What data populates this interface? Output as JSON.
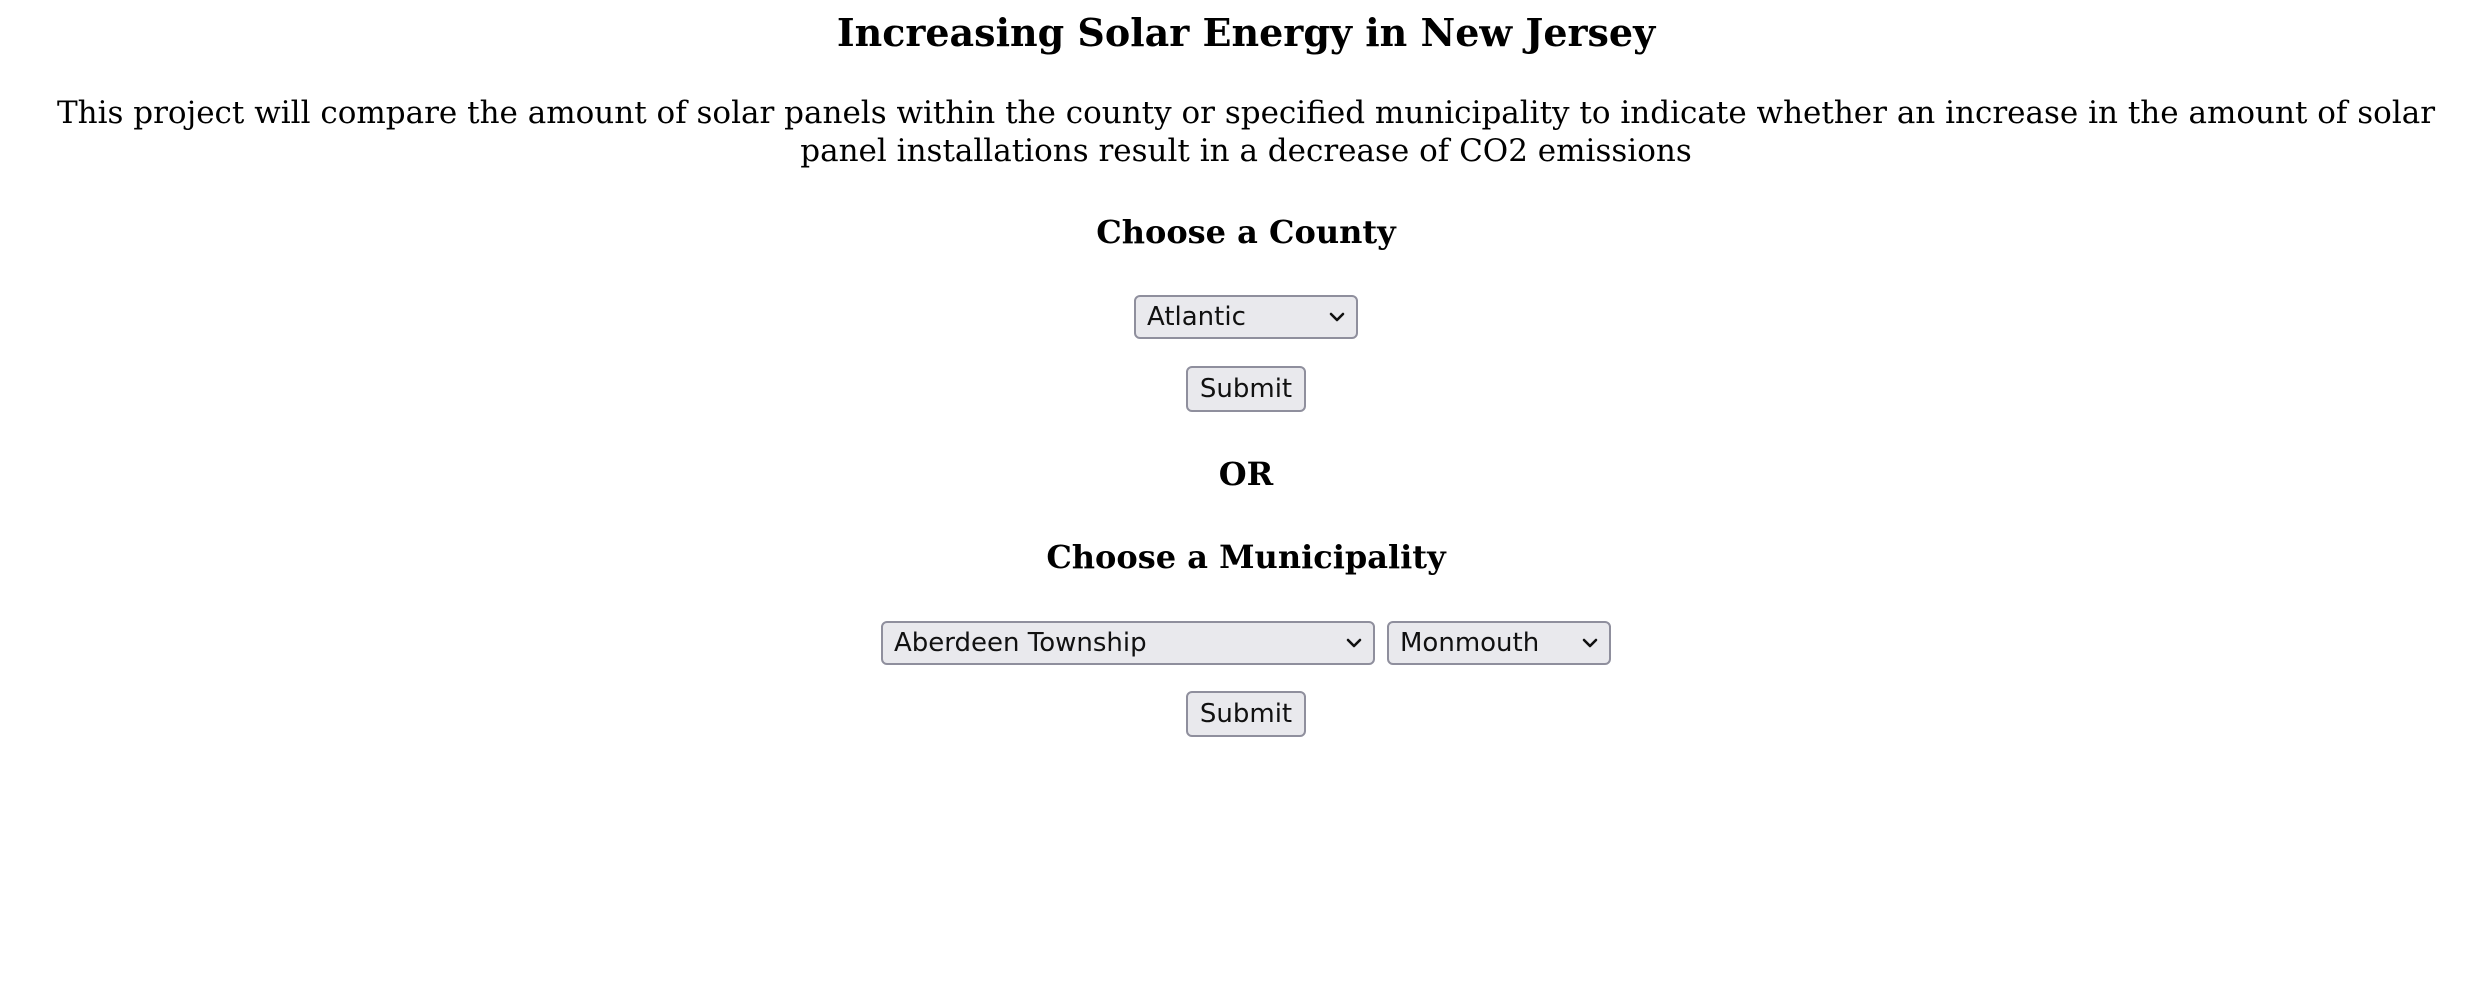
{
  "page": {
    "title": "Increasing Solar Energy in New Jersey",
    "intro": "This project will compare the amount of solar panels within the county or specified municipality to indicate whether an increase in the amount of solar panel installations result in a decrease of CO2 emissions"
  },
  "county_section": {
    "heading": "Choose a County",
    "county_select_value": "Atlantic",
    "submit_label": "Submit"
  },
  "separator": "OR",
  "municipality_section": {
    "heading": "Choose a Municipality",
    "municipality_select_value": "Aberdeen Township",
    "county_select_value": "Monmouth",
    "submit_label": "Submit"
  },
  "icons": {
    "dropdown": "chevron-down-icon"
  }
}
